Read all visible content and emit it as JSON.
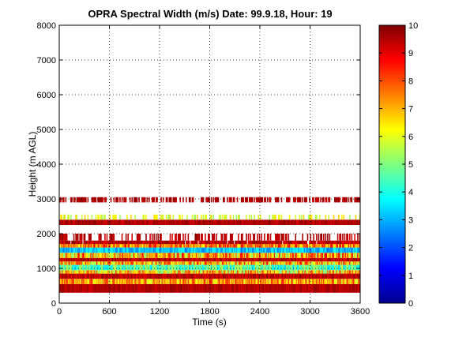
{
  "chart_data": {
    "type": "heatmap",
    "title": "OPRA Spectral Width (m/s)  Date: 99.9.18, Hour: 19",
    "xlabel": "Time (s)",
    "ylabel": "Height (m AGL)",
    "xlim": [
      0,
      3600
    ],
    "ylim": [
      0,
      8000
    ],
    "x_ticks": [
      "0",
      "600",
      "1200",
      "1800",
      "2400",
      "3000",
      "3600"
    ],
    "y_ticks": [
      "0",
      "1000",
      "2000",
      "3000",
      "4000",
      "5000",
      "6000",
      "7000",
      "8000"
    ],
    "grid": true,
    "colorbar": {
      "min": 0,
      "max": 10,
      "ticks": [
        "0",
        "1",
        "2",
        "3",
        "4",
        "5",
        "6",
        "7",
        "8",
        "9",
        "10"
      ],
      "colormap": "jet"
    },
    "height_layers": [
      {
        "bottom": 300,
        "top": 550,
        "value": 9.5,
        "variation": 0.3
      },
      {
        "bottom": 550,
        "top": 700,
        "value": 7.2,
        "variation": 1.5
      },
      {
        "bottom": 700,
        "top": 850,
        "value": 9.4,
        "variation": 0.4
      },
      {
        "bottom": 850,
        "top": 950,
        "value": 6.5,
        "variation": 1.8
      },
      {
        "bottom": 950,
        "top": 1100,
        "value": 4.5,
        "variation": 1.2
      },
      {
        "bottom": 1100,
        "top": 1200,
        "value": 6.8,
        "variation": 1.8
      },
      {
        "bottom": 1200,
        "top": 1300,
        "value": 9.4,
        "variation": 0.5
      },
      {
        "bottom": 1300,
        "top": 1450,
        "value": 7.0,
        "variation": 2.0
      },
      {
        "bottom": 1450,
        "top": 1600,
        "value": 3.2,
        "variation": 0.8
      },
      {
        "bottom": 1600,
        "top": 1700,
        "value": 7.5,
        "variation": 1.5
      },
      {
        "bottom": 1700,
        "top": 1800,
        "value": 9.4,
        "variation": 0.5,
        "coverage": 0.95
      },
      {
        "bottom": 1800,
        "top": 2000,
        "value": 9.5,
        "variation": 0.4,
        "coverage": 0.4
      },
      {
        "bottom": 2250,
        "top": 2400,
        "value": 9.5,
        "variation": 0.4
      },
      {
        "bottom": 2400,
        "top": 2550,
        "value": 6.0,
        "variation": 0.8,
        "coverage": 0.35
      },
      {
        "bottom": 2900,
        "top": 3050,
        "value": 9.5,
        "variation": 0.3,
        "coverage": 0.55
      }
    ]
  }
}
